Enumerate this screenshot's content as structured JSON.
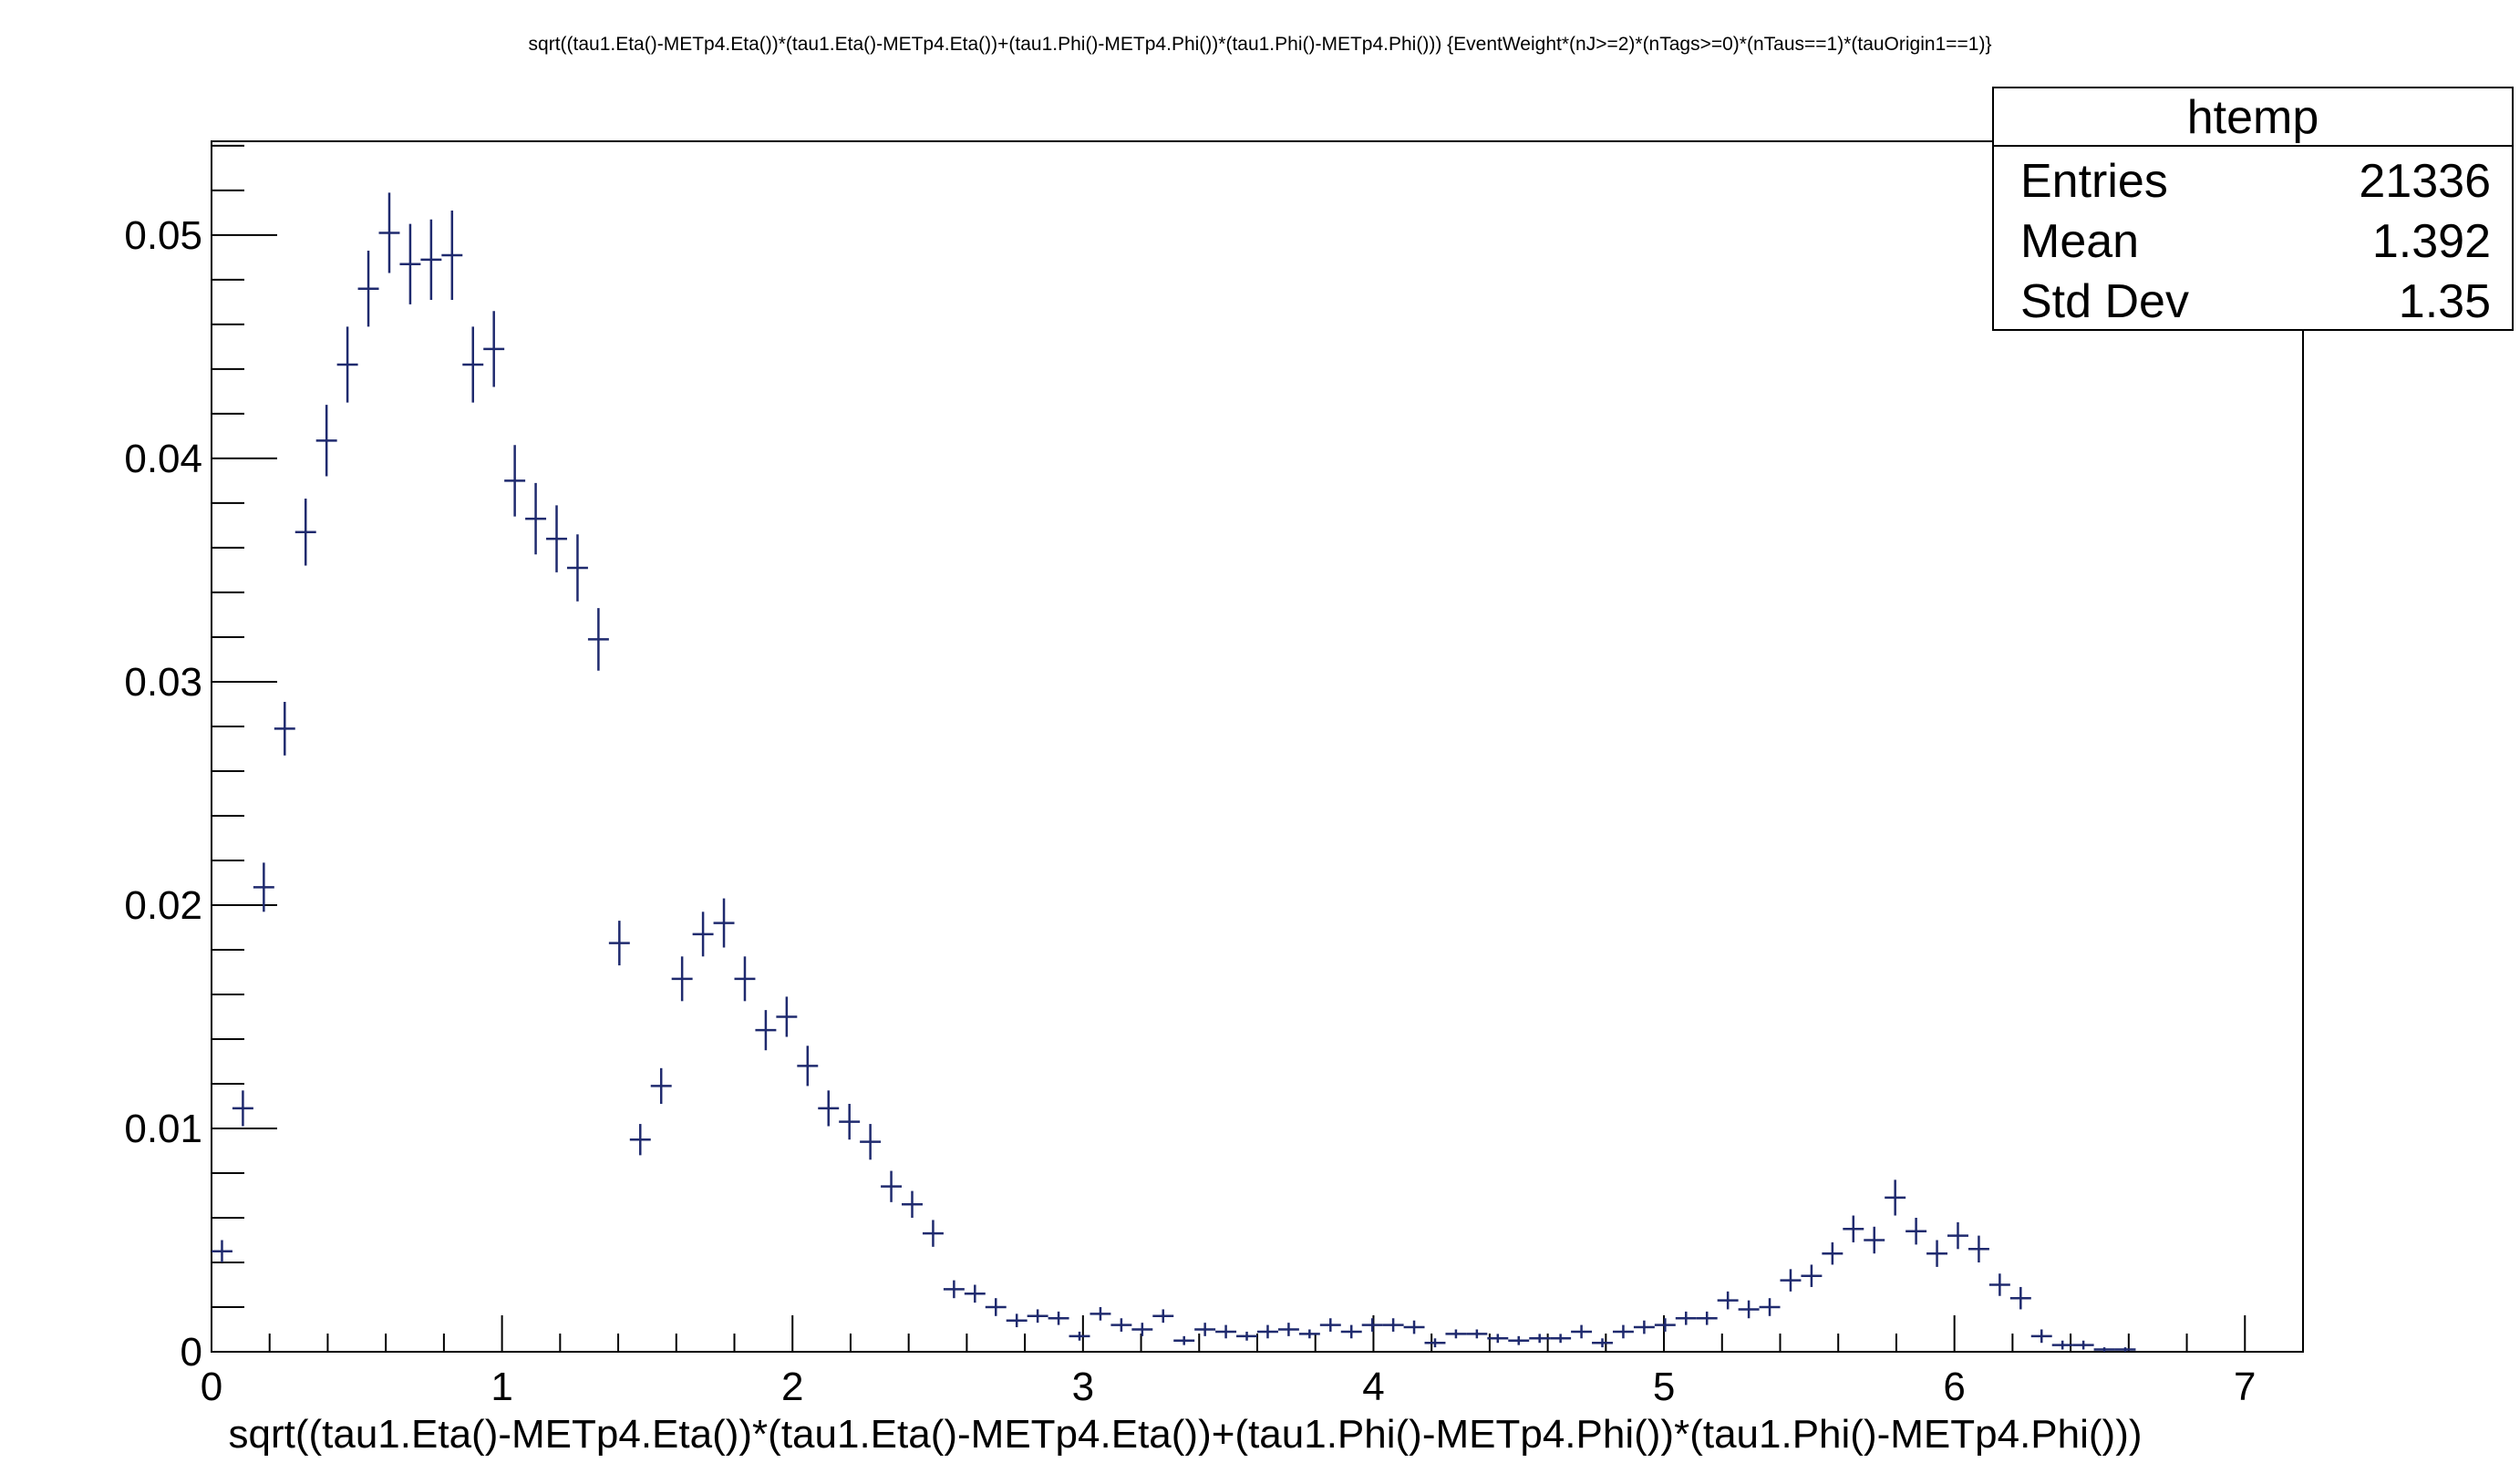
{
  "chart_data": {
    "type": "histogram",
    "title": "sqrt((tau1.Eta()-METp4.Eta())*(tau1.Eta()-METp4.Eta())+(tau1.Phi()-METp4.Phi())*(tau1.Phi()-METp4.Phi())) {EventWeight*(nJ>=2)*(nTags>=0)*(nTaus==1)*(tauOrigin1==1)}",
    "xlabel": "sqrt((tau1.Eta()-METp4.Eta())*(tau1.Eta()-METp4.Eta())+(tau1.Phi()-METp4.Phi())*(tau1.Phi()-METp4.Phi()))",
    "ylabel": "",
    "xlim": [
      0,
      7.2
    ],
    "ylim": [
      0,
      0.0542
    ],
    "x_ticks": [
      "0",
      "1",
      "2",
      "3",
      "4",
      "5",
      "6",
      "7"
    ],
    "y_ticks": [
      "0",
      "0.01",
      "0.02",
      "0.03",
      "0.04",
      "0.05"
    ],
    "bin_width": 0.072,
    "color": "#1f2a6e",
    "legend_position": "top-right",
    "stats_box": {
      "name": "htemp",
      "rows": [
        {
          "label": "Entries",
          "value": "21336"
        },
        {
          "label": "Mean",
          "value": "1.392"
        },
        {
          "label": "Std Dev",
          "value": "1.35"
        }
      ]
    },
    "series": [
      {
        "x": [
          0.036,
          0.108,
          0.18,
          0.252,
          0.324,
          0.396,
          0.468,
          0.54,
          0.612,
          0.684,
          0.756,
          0.828,
          0.9,
          0.972,
          1.044,
          1.116,
          1.188,
          1.26,
          1.332,
          1.404,
          1.476,
          1.548,
          1.62,
          1.692,
          1.764,
          1.836,
          1.908,
          1.98,
          2.052,
          2.124,
          2.196,
          2.268,
          2.34,
          2.412,
          2.484,
          2.556,
          2.628,
          2.7,
          2.772,
          2.844,
          2.916,
          2.988,
          3.06,
          3.132,
          3.204,
          3.276,
          3.348,
          3.42,
          3.492,
          3.564,
          3.636,
          3.708,
          3.78,
          3.852,
          3.924,
          3.996,
          4.068,
          4.14,
          4.212,
          4.284,
          4.356,
          4.428,
          4.5,
          4.572,
          4.644,
          4.716,
          4.788,
          4.86,
          4.932,
          5.004,
          5.076,
          5.148,
          5.22,
          5.292,
          5.364,
          5.436,
          5.508,
          5.58,
          5.652,
          5.724,
          5.796,
          5.868,
          5.94,
          6.012,
          6.084,
          6.156,
          6.228,
          6.3,
          6.372,
          6.444,
          6.516,
          6.588
        ],
        "y": [
          0.0045,
          0.0109,
          0.0208,
          0.0279,
          0.0367,
          0.0408,
          0.0442,
          0.0476,
          0.0501,
          0.0487,
          0.0489,
          0.0491,
          0.0442,
          0.0449,
          0.039,
          0.0373,
          0.0364,
          0.0351,
          0.0319,
          0.0183,
          0.0095,
          0.0119,
          0.0167,
          0.0187,
          0.0192,
          0.0167,
          0.0144,
          0.015,
          0.0128,
          0.0109,
          0.0103,
          0.0094,
          0.0074,
          0.0066,
          0.0053,
          0.0028,
          0.0026,
          0.002,
          0.0014,
          0.0016,
          0.0015,
          0.0007,
          0.0017,
          0.0012,
          0.001,
          0.0016,
          0.0005,
          0.001,
          0.0009,
          0.0007,
          0.0009,
          0.001,
          0.0008,
          0.0012,
          0.0009,
          0.0012,
          0.0012,
          0.0011,
          0.0004,
          0.0008,
          0.0008,
          0.0006,
          0.0005,
          0.0006,
          0.0006,
          0.0009,
          0.0004,
          0.0009,
          0.0011,
          0.0012,
          0.0015,
          0.0015,
          0.0023,
          0.0019,
          0.002,
          0.0032,
          0.0034,
          0.0044,
          0.0055,
          0.005,
          0.0069,
          0.0054,
          0.0044,
          0.0052,
          0.0046,
          0.003,
          0.0024,
          0.0007,
          0.0003,
          0.0003,
          0.0001,
          0.0001
        ],
        "yerr": [
          0.0005,
          0.0008,
          0.0011,
          0.0012,
          0.0015,
          0.0016,
          0.0017,
          0.0017,
          0.0018,
          0.0018,
          0.0018,
          0.002,
          0.0017,
          0.0017,
          0.0016,
          0.0016,
          0.0015,
          0.0015,
          0.0014,
          0.001,
          0.0007,
          0.0008,
          0.001,
          0.001,
          0.0011,
          0.001,
          0.0009,
          0.0009,
          0.0009,
          0.0008,
          0.0008,
          0.0008,
          0.0007,
          0.0006,
          0.0006,
          0.0004,
          0.0004,
          0.0004,
          0.0003,
          0.0003,
          0.0003,
          0.0002,
          0.0003,
          0.0003,
          0.0003,
          0.0003,
          0.0002,
          0.0003,
          0.0003,
          0.0002,
          0.0003,
          0.0003,
          0.0002,
          0.0003,
          0.0003,
          0.0003,
          0.0003,
          0.0003,
          0.0002,
          0.0002,
          0.0002,
          0.0002,
          0.0002,
          0.0002,
          0.0002,
          0.0003,
          0.0002,
          0.0003,
          0.0003,
          0.0003,
          0.0003,
          0.0003,
          0.0004,
          0.0004,
          0.0004,
          0.0005,
          0.0005,
          0.0005,
          0.0006,
          0.0006,
          0.0008,
          0.0006,
          0.0006,
          0.0006,
          0.0006,
          0.0005,
          0.0005,
          0.0003,
          0.0002,
          0.0002,
          0.0001,
          0.0001
        ]
      }
    ]
  }
}
